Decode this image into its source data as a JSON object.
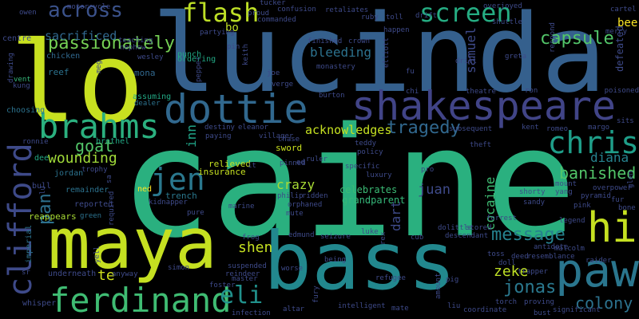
{
  "colors": {
    "background": "#000000",
    "palette": [
      "#440154",
      "#3b528b",
      "#21918c",
      "#5ec962",
      "#fde725"
    ]
  },
  "words": [
    {
      "text": "caine",
      "color": "#2ab07f"
    },
    {
      "text": "lucinda",
      "color": "#35608d"
    },
    {
      "text": "lo",
      "color": "#c8e020"
    },
    {
      "text": "maya",
      "color": "#c5e021"
    },
    {
      "text": "bass",
      "color": "#22888e"
    },
    {
      "text": "shakespeare",
      "color": "#414487"
    },
    {
      "text": "paw",
      "color": "#2a768e"
    },
    {
      "text": "hi",
      "color": "#c5e021"
    },
    {
      "text": "dottie",
      "color": "#31688e"
    },
    {
      "text": "brahms",
      "color": "#2bb07f"
    },
    {
      "text": "clifford",
      "color": "#3e4a89"
    },
    {
      "text": "ferdinand",
      "color": "#3fbc73"
    },
    {
      "text": "chris",
      "color": "#1f9e89"
    },
    {
      "text": "jen",
      "color": "#2a788e"
    },
    {
      "text": "flash",
      "color": "#bddf26"
    },
    {
      "text": "screen",
      "color": "#25ac82"
    },
    {
      "text": "passionately",
      "color": "#75d054"
    },
    {
      "text": "across",
      "color": "#3b528b"
    },
    {
      "text": "capsule",
      "color": "#52c569"
    },
    {
      "text": "eli",
      "color": "#21918c"
    },
    {
      "text": "message",
      "color": "#26828e"
    },
    {
      "text": "colony",
      "color": "#2c728e"
    },
    {
      "text": "jonas",
      "color": "#2a788e"
    },
    {
      "text": "goat",
      "color": "#52c569"
    },
    {
      "text": "banished",
      "color": "#52c569"
    },
    {
      "text": "tragedy",
      "color": "#31688e"
    },
    {
      "text": "sacrificed",
      "color": "#31688e"
    },
    {
      "text": "acknowledges",
      "color": "#c5e021"
    },
    {
      "text": "wounding",
      "color": "#a0da39"
    },
    {
      "text": "zeke",
      "color": "#bddf26"
    },
    {
      "text": "pan",
      "color": "#2d708e"
    },
    {
      "text": "diana",
      "color": "#26828e"
    },
    {
      "text": "shen",
      "color": "#c5e021"
    },
    {
      "text": "crazy",
      "color": "#a8db34"
    },
    {
      "text": "bleeding",
      "color": "#2c728e"
    },
    {
      "text": "samuel",
      "color": "#3e4a89"
    },
    {
      "text": "juan",
      "color": "#3e4a89"
    },
    {
      "text": "cocaine",
      "color": "#3fbc73"
    },
    {
      "text": "te",
      "color": "#d0e11c"
    },
    {
      "text": "inn",
      "color": "#20a386"
    },
    {
      "text": "dart",
      "color": "#3e4a89"
    },
    {
      "text": "bee",
      "color": "#fde725"
    },
    {
      "text": "bo",
      "color": "#c0df25"
    },
    {
      "text": "sword",
      "color": "#cae11f"
    },
    {
      "text": "relieved",
      "color": "#c5e021"
    },
    {
      "text": "insurance",
      "color": "#c5e021"
    },
    {
      "text": "ned",
      "color": "#fde725"
    },
    {
      "text": "trench",
      "color": "#2a788e"
    },
    {
      "text": "celebrates",
      "color": "#3bbb75"
    },
    {
      "text": "grandparent",
      "color": "#35b779"
    },
    {
      "text": "teaching",
      "color": "#3e4a89"
    },
    {
      "text": "nephew",
      "color": "#3e4a89"
    },
    {
      "text": "wesley",
      "color": "#3e4a89"
    },
    {
      "text": "chicken",
      "color": "#31688e"
    },
    {
      "text": "reef",
      "color": "#2c728e"
    },
    {
      "text": "mona",
      "color": "#31688e"
    },
    {
      "text": "punch",
      "color": "#22a884"
    },
    {
      "text": "ordering",
      "color": "#22a884"
    },
    {
      "text": "assuming",
      "color": "#22a884"
    },
    {
      "text": "dealer",
      "color": "#2c728e"
    },
    {
      "text": "brothel",
      "color": "#22a884"
    },
    {
      "text": "trophy",
      "color": "#3e4a89"
    },
    {
      "text": "remainder",
      "color": "#2c728e"
    },
    {
      "text": "bull",
      "color": "#3e4a89"
    },
    {
      "text": "dee",
      "color": "#22a884"
    },
    {
      "text": "jordan",
      "color": "#2c728e"
    },
    {
      "text": "reported",
      "color": "#3e4a89"
    },
    {
      "text": "green",
      "color": "#2c728e"
    },
    {
      "text": "reappears",
      "color": "#a8db34"
    },
    {
      "text": "imperial",
      "color": "#2c728e"
    },
    {
      "text": "underneath",
      "color": "#3e4a89"
    },
    {
      "text": "whisper",
      "color": "#3e4a89"
    },
    {
      "text": "choosing",
      "color": "#2c728e"
    },
    {
      "text": "centre",
      "color": "#3e4a89"
    },
    {
      "text": "owen",
      "color": "#3e4a89"
    },
    {
      "text": "motorcycle",
      "color": "#3e4a89"
    },
    {
      "text": "drawing",
      "color": "#3e4a89"
    },
    {
      "text": "vent",
      "color": "#35b779"
    },
    {
      "text": "kung",
      "color": "#3e4a89"
    },
    {
      "text": "tucker",
      "color": "#3e4a89"
    },
    {
      "text": "proud",
      "color": "#3e4a89"
    },
    {
      "text": "commanded",
      "color": "#3e4a89"
    },
    {
      "text": "confusion",
      "color": "#3e4a89"
    },
    {
      "text": "retaliates",
      "color": "#3e4a89"
    },
    {
      "text": "ruby",
      "color": "#3e4a89"
    },
    {
      "text": "toll",
      "color": "#3e4a89"
    },
    {
      "text": "drift",
      "color": "#3e4a89"
    },
    {
      "text": "overjoyed",
      "color": "#3e4a89"
    },
    {
      "text": "cartel",
      "color": "#3e4a89"
    },
    {
      "text": "mercy",
      "color": "#3e4a89"
    },
    {
      "text": "shuttle",
      "color": "#3e4a89"
    },
    {
      "text": "finished",
      "color": "#3e4a89"
    },
    {
      "text": "crown",
      "color": "#3e4a89"
    },
    {
      "text": "happen",
      "color": "#3e4a89"
    },
    {
      "text": "monastery",
      "color": "#3e4a89"
    },
    {
      "text": "elliott",
      "color": "#3e4a89"
    },
    {
      "text": "fu",
      "color": "#3e4a89"
    },
    {
      "text": "drill",
      "color": "#3e4a89"
    },
    {
      "text": "greta",
      "color": "#3e4a89"
    },
    {
      "text": "respond",
      "color": "#3e4a89"
    },
    {
      "text": "defeated",
      "color": "#3e4a89"
    },
    {
      "text": "poisoned",
      "color": "#3e4a89"
    },
    {
      "text": "ron",
      "color": "#3e4a89"
    },
    {
      "text": "theatre",
      "color": "#3e4a89"
    },
    {
      "text": "chi",
      "color": "#3e4a89"
    },
    {
      "text": "burton",
      "color": "#3e4a89"
    },
    {
      "text": "teddy",
      "color": "#3e4a89"
    },
    {
      "text": "policy",
      "color": "#3e4a89"
    },
    {
      "text": "luxury",
      "color": "#3e4a89"
    },
    {
      "text": "specific",
      "color": "#3e4a89"
    },
    {
      "text": "pro",
      "color": "#3e4a89"
    },
    {
      "text": "ruler",
      "color": "#3e4a89"
    },
    {
      "text": "ridden",
      "color": "#3e4a89"
    },
    {
      "text": "orphaned",
      "color": "#3e4a89"
    },
    {
      "text": "philip",
      "color": "#3e4a89"
    },
    {
      "text": "mute",
      "color": "#3e4a89"
    },
    {
      "text": "pinned",
      "color": "#3e4a89"
    },
    {
      "text": "ed",
      "color": "#3e4a89"
    },
    {
      "text": "subsequent",
      "color": "#3e4a89"
    },
    {
      "text": "kent",
      "color": "#3e4a89"
    },
    {
      "text": "romeo",
      "color": "#3e4a89"
    },
    {
      "text": "margo",
      "color": "#3e4a89"
    },
    {
      "text": "sits",
      "color": "#3e4a89"
    },
    {
      "text": "theft",
      "color": "#3e4a89"
    },
    {
      "text": "shorty",
      "color": "#3e4a89"
    },
    {
      "text": "yang",
      "color": "#3e4a89"
    },
    {
      "text": "mount",
      "color": "#3e4a89"
    },
    {
      "text": "pyramid",
      "color": "#3e4a89"
    },
    {
      "text": "overpower",
      "color": "#3e4a89"
    },
    {
      "text": "fur",
      "color": "#3e4a89"
    },
    {
      "text": "pink",
      "color": "#3e4a89"
    },
    {
      "text": "bone",
      "color": "#3e4a89"
    },
    {
      "text": "glen",
      "color": "#3e4a89"
    },
    {
      "text": "sandy",
      "color": "#3e4a89"
    },
    {
      "text": "legend",
      "color": "#3e4a89"
    },
    {
      "text": "antidote",
      "color": "#3e4a89"
    },
    {
      "text": "malcolm",
      "color": "#3e4a89"
    },
    {
      "text": "forrest",
      "color": "#3e4a89"
    },
    {
      "text": "stored",
      "color": "#3e4a89"
    },
    {
      "text": "dolittle",
      "color": "#3e4a89"
    },
    {
      "text": "descendant",
      "color": "#3e4a89"
    },
    {
      "text": "toss",
      "color": "#3e4a89"
    },
    {
      "text": "deed",
      "color": "#3e4a89"
    },
    {
      "text": "resemblance",
      "color": "#3e4a89"
    },
    {
      "text": "raider",
      "color": "#3e4a89"
    },
    {
      "text": "doll",
      "color": "#3e4a89"
    },
    {
      "text": "trapper",
      "color": "#3e4a89"
    },
    {
      "text": "pig",
      "color": "#3e4a89"
    },
    {
      "text": "torch",
      "color": "#3e4a89"
    },
    {
      "text": "proving",
      "color": "#3e4a89"
    },
    {
      "text": "significant",
      "color": "#3e4a89"
    },
    {
      "text": "coordinate",
      "color": "#3e4a89"
    },
    {
      "text": "bust",
      "color": "#3e4a89"
    },
    {
      "text": "liu",
      "color": "#3e4a89"
    },
    {
      "text": "amount",
      "color": "#3e4a89"
    },
    {
      "text": "refugee",
      "color": "#3e4a89"
    },
    {
      "text": "mate",
      "color": "#3e4a89"
    },
    {
      "text": "intelligent",
      "color": "#3e4a89"
    },
    {
      "text": "being",
      "color": "#3e4a89"
    },
    {
      "text": "fury",
      "color": "#3e4a89"
    },
    {
      "text": "altar",
      "color": "#3e4a89"
    },
    {
      "text": "worse",
      "color": "#3e4a89"
    },
    {
      "text": "infection",
      "color": "#3e4a89"
    },
    {
      "text": "master",
      "color": "#3e4a89"
    },
    {
      "text": "reindeer",
      "color": "#3e4a89"
    },
    {
      "text": "foster",
      "color": "#3e4a89"
    },
    {
      "text": "suspended",
      "color": "#3e4a89"
    },
    {
      "text": "simon",
      "color": "#3e4a89"
    },
    {
      "text": "anyway",
      "color": "#3e4a89"
    },
    {
      "text": "yell",
      "color": "#3e4a89"
    },
    {
      "text": "sr",
      "color": "#3e4a89"
    },
    {
      "text": "frog",
      "color": "#3e4a89"
    },
    {
      "text": "marine",
      "color": "#3e4a89"
    },
    {
      "text": "edmund",
      "color": "#3e4a89"
    },
    {
      "text": "seizure",
      "color": "#3e4a89"
    },
    {
      "text": "luke",
      "color": "#3e4a89"
    },
    {
      "text": "rex",
      "color": "#3e4a89"
    },
    {
      "text": "cub",
      "color": "#3e4a89"
    },
    {
      "text": "pure",
      "color": "#3e4a89"
    },
    {
      "text": "kidnapper",
      "color": "#3e4a89"
    },
    {
      "text": "required",
      "color": "#3e4a89"
    },
    {
      "text": "sa",
      "color": "#3e4a89"
    },
    {
      "text": "lu",
      "color": "#3e4a89"
    },
    {
      "text": "it",
      "color": "#3e4a89"
    },
    {
      "text": "destiny",
      "color": "#3e4a89"
    },
    {
      "text": "paying",
      "color": "#3e4a89"
    },
    {
      "text": "eleanor",
      "color": "#3e4a89"
    },
    {
      "text": "villager",
      "color": "#3e4a89"
    },
    {
      "text": "chase",
      "color": "#3e4a89"
    },
    {
      "text": "verge",
      "color": "#3e4a89"
    },
    {
      "text": "joe",
      "color": "#3e4a89"
    },
    {
      "text": "keith",
      "color": "#3e4a89"
    },
    {
      "text": "pin",
      "color": "#3e4a89"
    },
    {
      "text": "pepper",
      "color": "#3e4a89"
    },
    {
      "text": "partying",
      "color": "#3e4a89"
    },
    {
      "text": "meg",
      "color": "#3e4a89"
    },
    {
      "text": "ronnie",
      "color": "#3e4a89"
    }
  ]
}
